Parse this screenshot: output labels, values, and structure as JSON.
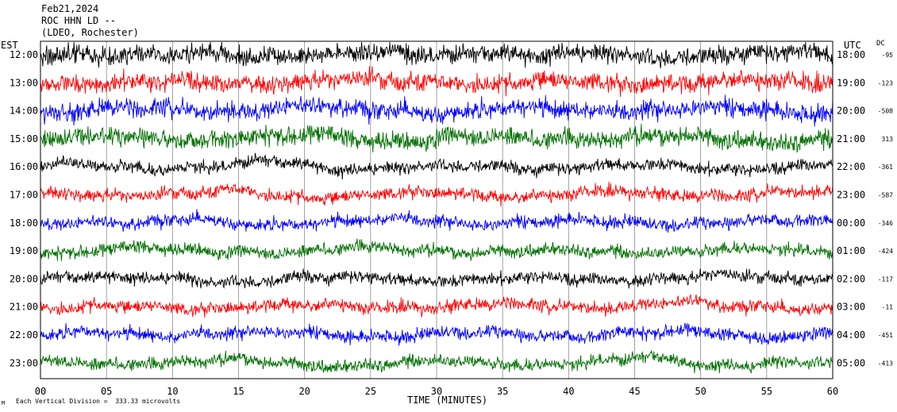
{
  "header": {
    "date": "Feb21,2024",
    "station": "ROC HHN LD --",
    "network": "(LDEO, Rochester)"
  },
  "chart_data": {
    "type": "line",
    "left_axis_title": "EST",
    "right_axis_title": "UTC",
    "dc_title": "DC",
    "xlabel": "TIME (MINUTES)",
    "footnote": "Each Vertical Division =  333.33 microvolts",
    "footnote_mark": "M",
    "xlim": [
      0,
      60
    ],
    "x_ticks": [
      "00",
      "05",
      "10",
      "15",
      "20",
      "25",
      "30",
      "35",
      "40",
      "45",
      "50",
      "55",
      "60"
    ],
    "traces": [
      {
        "est": "12:00",
        "utc": "18:00",
        "dc": "-95",
        "color": "#000000",
        "amp": "high"
      },
      {
        "est": "13:00",
        "utc": "19:00",
        "dc": "-123",
        "color": "#ff0000",
        "amp": "high"
      },
      {
        "est": "14:00",
        "utc": "20:00",
        "dc": "-508",
        "color": "#0000ff",
        "amp": "high"
      },
      {
        "est": "15:00",
        "utc": "21:00",
        "dc": "313",
        "color": "#007000",
        "amp": "high"
      },
      {
        "est": "16:00",
        "utc": "22:00",
        "dc": "-361",
        "color": "#000000",
        "amp": "mid"
      },
      {
        "est": "17:00",
        "utc": "23:00",
        "dc": "-587",
        "color": "#ff0000",
        "amp": "mid"
      },
      {
        "est": "18:00",
        "utc": "00:00",
        "dc": "-346",
        "color": "#0000ff",
        "amp": "mid"
      },
      {
        "est": "19:00",
        "utc": "01:00",
        "dc": "-424",
        "color": "#007000",
        "amp": "mid"
      },
      {
        "est": "20:00",
        "utc": "02:00",
        "dc": "-117",
        "color": "#000000",
        "amp": "mid"
      },
      {
        "est": "21:00",
        "utc": "03:00",
        "dc": "-11",
        "color": "#ff0000",
        "amp": "mid"
      },
      {
        "est": "22:00",
        "utc": "04:00",
        "dc": "-451",
        "color": "#0000ff",
        "amp": "mid"
      },
      {
        "est": "23:00",
        "utc": "05:00",
        "dc": "-413",
        "color": "#007000",
        "amp": "mid"
      }
    ]
  }
}
